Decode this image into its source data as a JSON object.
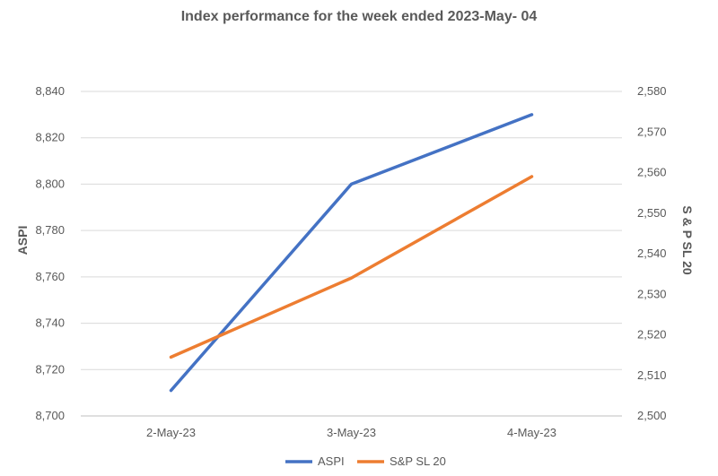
{
  "chart_data": {
    "type": "line",
    "title": "Index performance for the week ended 2023-May- 04",
    "categories": [
      "2-May-23",
      "3-May-23",
      "4-May-23"
    ],
    "y_left": {
      "label": "ASPI",
      "range": [
        8700,
        8840
      ],
      "ticks": [
        "8,700",
        "8,720",
        "8,740",
        "8,760",
        "8,780",
        "8,800",
        "8,820",
        "8,840"
      ]
    },
    "y_right": {
      "label": "S & P SL 20",
      "range": [
        2500,
        2580
      ],
      "ticks": [
        "2,500",
        "2,510",
        "2,520",
        "2,530",
        "2,540",
        "2,550",
        "2,560",
        "2,570",
        "2,580"
      ]
    },
    "series": [
      {
        "name": "ASPI",
        "axis": "left",
        "color": "#4472C4",
        "values": [
          8711,
          8800,
          8830
        ]
      },
      {
        "name": "S&P SL 20",
        "axis": "right",
        "color": "#ED7D31",
        "values": [
          2514.5,
          2534,
          2559
        ]
      }
    ],
    "grid": true,
    "legend_position": "bottom"
  }
}
